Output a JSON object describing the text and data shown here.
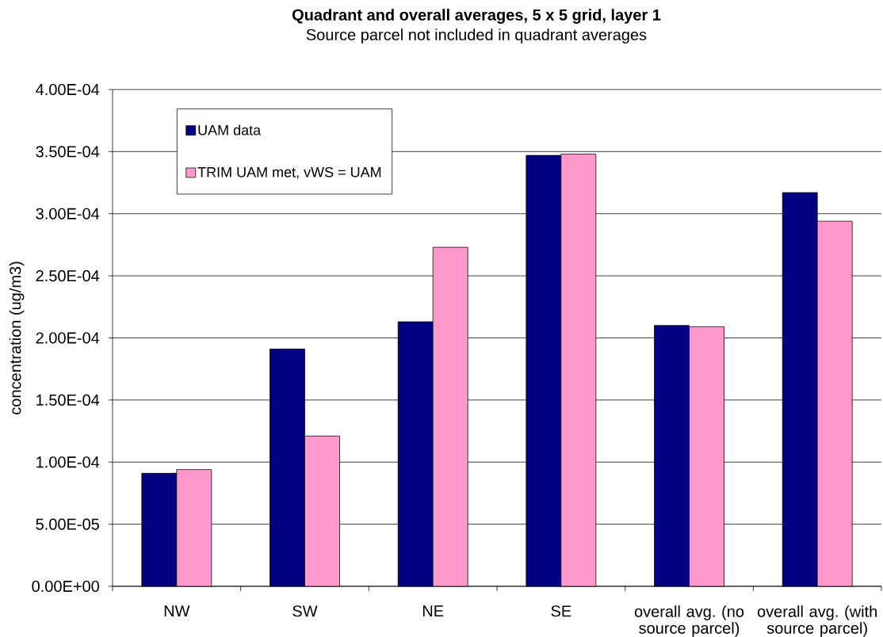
{
  "chart_data": {
    "type": "bar",
    "title": "Quadrant and overall averages, 5 x 5 grid, layer 1",
    "subtitle": "Source parcel not included in quadrant averages",
    "ylabel": "concentration (ug/m3)",
    "categories": [
      "NW",
      "SW",
      "NE",
      "SE",
      "overall avg. (no source parcel)",
      "overall avg. (with source parcel)"
    ],
    "series": [
      {
        "name": "UAM data",
        "color": "#000080",
        "values": [
          9.1e-05,
          0.000191,
          0.000213,
          0.000347,
          0.00021,
          0.000317
        ]
      },
      {
        "name": "TRIM UAM met, vWS = UAM",
        "color": "#ff99cc",
        "values": [
          9.4e-05,
          0.000121,
          0.000273,
          0.000348,
          0.000209,
          0.000294
        ]
      }
    ],
    "ylim": [
      0,
      0.0004
    ],
    "yticks": [
      {
        "value": 0,
        "label": "0.00E+00"
      },
      {
        "value": 5e-05,
        "label": "5.00E-05"
      },
      {
        "value": 0.0001,
        "label": "1.00E-04"
      },
      {
        "value": 0.00015,
        "label": "1.50E-04"
      },
      {
        "value": 0.0002,
        "label": "2.00E-04"
      },
      {
        "value": 0.00025,
        "label": "2.50E-04"
      },
      {
        "value": 0.0003,
        "label": "3.00E-04"
      },
      {
        "value": 0.00035,
        "label": "3.50E-04"
      },
      {
        "value": 0.0004,
        "label": "4.00E-04"
      }
    ],
    "grid": "y",
    "legend": "top left"
  }
}
